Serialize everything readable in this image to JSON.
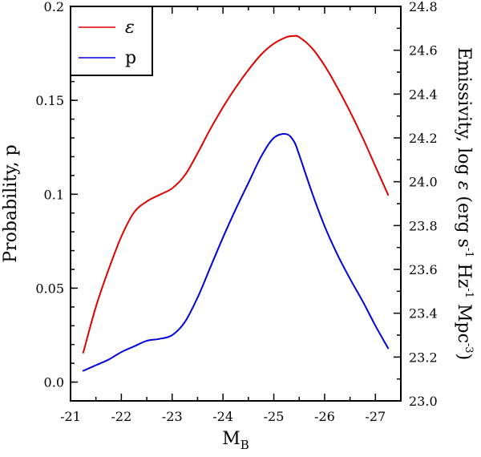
{
  "chart_data": {
    "type": "line",
    "title": "",
    "xlabel": "M",
    "xlabel_sub": "B",
    "ylabel_left": "Probability, p",
    "ylabel_right": [
      "Emissivity, log ",
      "ε",
      " (erg s",
      "-1",
      " Hz",
      "-1",
      " Mpc",
      "-3",
      ")"
    ],
    "x_range": [
      -21,
      -27.5
    ],
    "x_ticks": [
      -21,
      -22,
      -23,
      -24,
      -25,
      -26,
      -27
    ],
    "x_tick_labels": [
      "-21",
      "-22",
      "-23",
      "-24",
      "-25",
      "-26",
      "-27"
    ],
    "y_left_range": [
      -0.01,
      0.2
    ],
    "y_left_ticks": [
      0.0,
      0.05,
      0.1,
      0.15,
      0.2
    ],
    "y_left_tick_labels": [
      "0.0",
      "0.05",
      "0.1",
      "0.15",
      "0.2"
    ],
    "y_right_range": [
      23.0,
      24.8
    ],
    "y_right_ticks": [
      23.0,
      23.2,
      23.4,
      23.6,
      23.8,
      24.0,
      24.2,
      24.4,
      24.6,
      24.8
    ],
    "y_right_tick_labels": [
      "23.0",
      "23.2",
      "23.4",
      "23.6",
      "23.8",
      "24.0",
      "24.2",
      "24.4",
      "24.6",
      "24.8"
    ],
    "legend_position": "top-left",
    "series": [
      {
        "name": "ε",
        "axis": "right",
        "color": "#e00000",
        "x": [
          -21.25,
          -21.5,
          -21.75,
          -22.0,
          -22.25,
          -22.5,
          -22.75,
          -23.0,
          -23.25,
          -23.5,
          -23.75,
          -24.0,
          -24.25,
          -24.5,
          -24.75,
          -25.0,
          -25.25,
          -25.4,
          -25.5,
          -25.75,
          -26.0,
          -26.25,
          -26.5,
          -26.75,
          -27.0,
          -27.25
        ],
        "y": [
          23.22,
          23.43,
          23.6,
          23.75,
          23.86,
          23.91,
          23.94,
          23.97,
          24.03,
          24.13,
          24.24,
          24.34,
          24.43,
          24.51,
          24.58,
          24.63,
          24.66,
          24.665,
          24.66,
          24.61,
          24.53,
          24.43,
          24.32,
          24.2,
          24.07,
          23.94
        ]
      },
      {
        "name": "p",
        "axis": "left",
        "color": "#0000dd",
        "x": [
          -21.25,
          -21.5,
          -21.75,
          -22.0,
          -22.25,
          -22.5,
          -22.75,
          -23.0,
          -23.25,
          -23.5,
          -23.75,
          -24.0,
          -24.25,
          -24.5,
          -24.75,
          -25.0,
          -25.25,
          -25.4,
          -25.5,
          -25.75,
          -26.0,
          -26.25,
          -26.5,
          -26.75,
          -27.0,
          -27.25
        ],
        "y": [
          0.006,
          0.009,
          0.012,
          0.016,
          0.019,
          0.022,
          0.023,
          0.025,
          0.032,
          0.045,
          0.061,
          0.077,
          0.092,
          0.106,
          0.12,
          0.13,
          0.132,
          0.128,
          0.121,
          0.101,
          0.083,
          0.068,
          0.055,
          0.043,
          0.03,
          0.018
        ]
      }
    ]
  }
}
